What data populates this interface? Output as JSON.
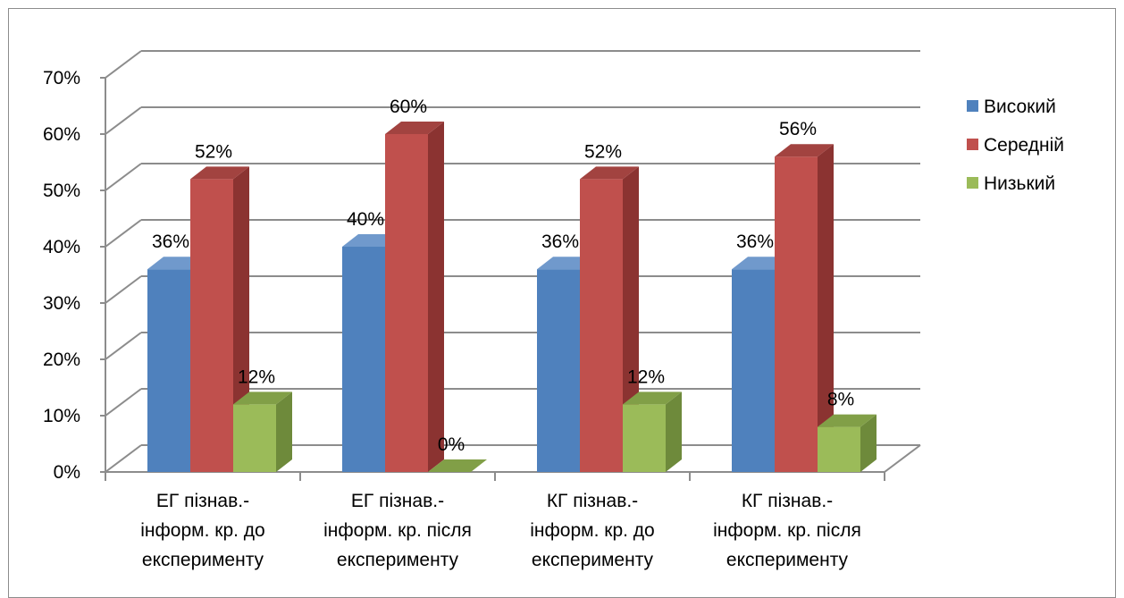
{
  "chart_data": {
    "type": "bar",
    "style": "3d-clustered-column",
    "categories": [
      [
        "ЕГ пізнав.-",
        "інформ. кр. до",
        "експерименту"
      ],
      [
        "ЕГ пізнав.-",
        "інформ. кр. після",
        "експерименту"
      ],
      [
        "КГ пізнав.-",
        "інформ. кр. до",
        "експерименту"
      ],
      [
        "КГ пізнав.-",
        "інформ. кр. після",
        "експерименту"
      ]
    ],
    "series": [
      {
        "name": "Високий",
        "values": [
          36,
          40,
          36,
          36
        ],
        "labels": [
          "36%",
          "40%",
          "36%",
          "36%"
        ],
        "color": "#4f81bd",
        "side": "#3a6290",
        "top": "#7099cc"
      },
      {
        "name": "Середній",
        "values": [
          52,
          60,
          52,
          56
        ],
        "labels": [
          "52%",
          "60%",
          "52%",
          "56%"
        ],
        "color": "#c0504d",
        "side": "#8b3331",
        "top": "#a24340"
      },
      {
        "name": "Низький",
        "values": [
          12,
          0,
          12,
          8
        ],
        "labels": [
          "12%",
          "0%",
          "12%",
          "8%"
        ],
        "color": "#9bbb59",
        "side": "#6e8a3b",
        "top": "#819f47"
      }
    ],
    "y_ticks": [
      "0%",
      "10%",
      "20%",
      "30%",
      "40%",
      "50%",
      "60%",
      "70%"
    ],
    "ylim": [
      0,
      70
    ],
    "grid": true,
    "legend_position": "right",
    "title": "",
    "xlabel": "",
    "ylabel": ""
  }
}
